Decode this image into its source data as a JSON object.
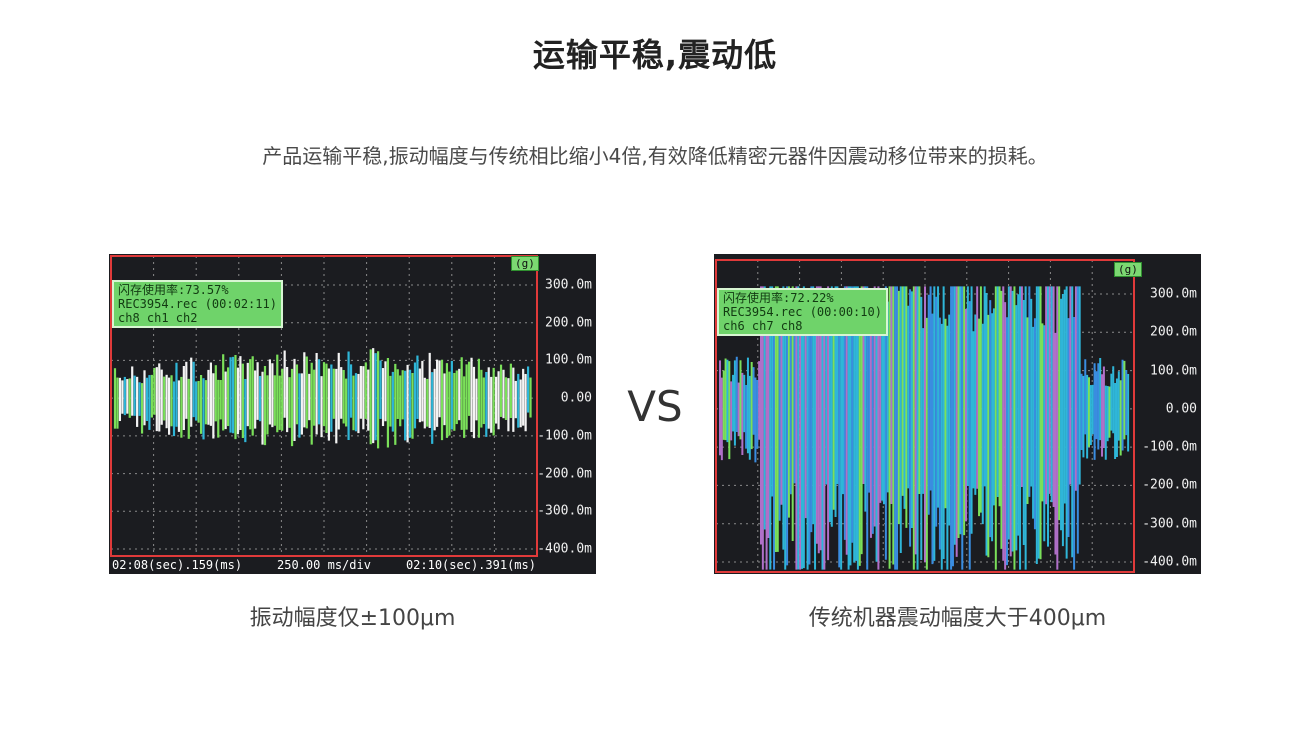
{
  "title": "运输平稳,震动低",
  "subtitle": "产品运输平稳,振动幅度与传统相比缩小4倍,有效降低精密元器件因震动移位带来的损耗。",
  "vs_label": "VS",
  "colors": {
    "scope_bg": "#1b1c20",
    "grid": "#8a8a8a",
    "border": "#e03a3a",
    "info_box": "#6fd36a",
    "trace_green": "#7be05a",
    "trace_cyan": "#2fb6d8",
    "trace_white": "#f4f4f4"
  },
  "left_panel": {
    "unit": "(g)",
    "info": {
      "line1": "闪存使用率:73.57%",
      "line2": "REC3954.rec (00:02:11)",
      "line3": "ch8 ch1 ch2"
    },
    "y_ticks": [
      "300.0m",
      "200.0m",
      "100.0m",
      "0.00",
      "-100.0m",
      "-200.0m",
      "-300.0m",
      "-400.0m"
    ],
    "footer": {
      "start": "02:08(sec).159(ms)",
      "scale": "250.00 ms/div",
      "end": "02:10(sec).391(ms)"
    },
    "amplitude_g": 0.1,
    "caption": "振动幅度仅±100μm"
  },
  "right_panel": {
    "unit": "(g)",
    "info": {
      "line1": "闪存使用率:72.22%",
      "line2": "REC3954.rec (00:00:10)",
      "line3": "ch6 ch7 ch8"
    },
    "y_ticks": [
      "300.0m",
      "200.0m",
      "100.0m",
      "0.00",
      "-100.0m",
      "-200.0m",
      "-300.0m",
      "-400.0m"
    ],
    "amplitude_g": 0.4,
    "caption": "传统机器震动幅度大于400μm"
  }
}
